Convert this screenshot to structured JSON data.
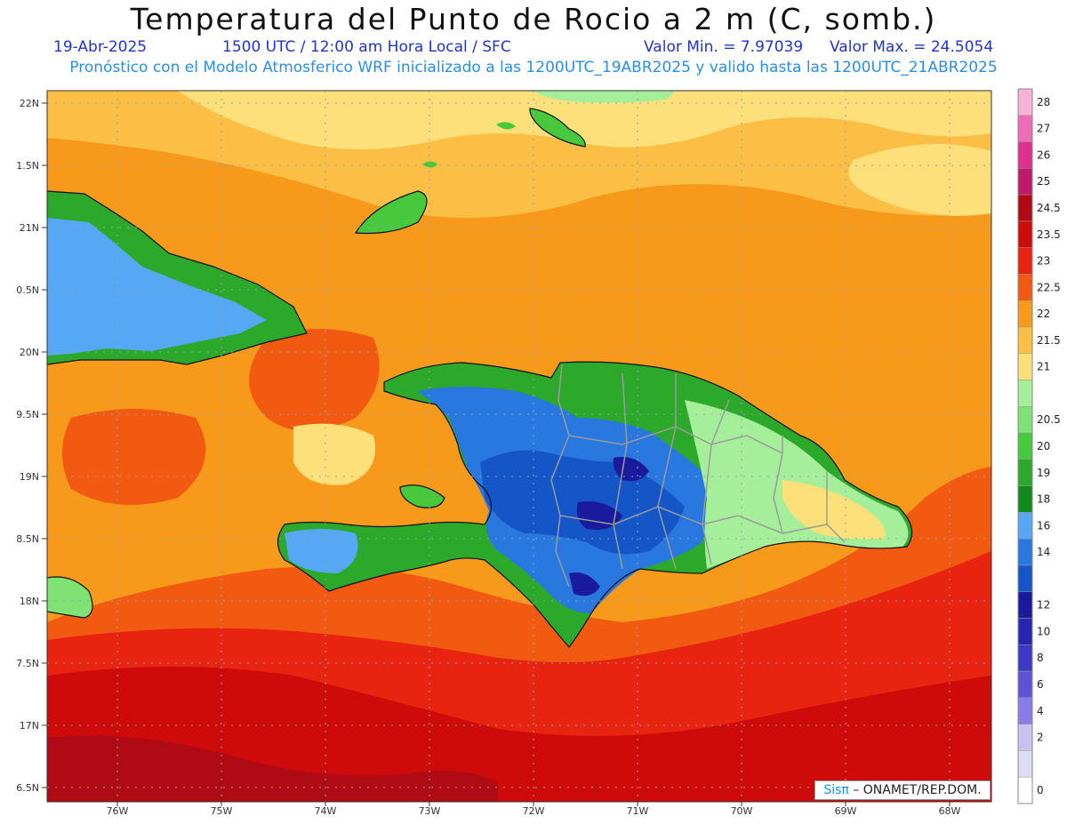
{
  "header": {
    "title": "Temperatura del Punto de Rocio a 2 m (C, somb.)",
    "date": "19-Abr-2025",
    "time": "1500 UTC / 12:00 am Hora Local / SFC",
    "min_label": "Valor Min. = 7.97039",
    "max_label": "Valor Max. = 24.5054",
    "model_line": "Pronóstico con el Modelo Atmosferico WRF inicializado a las 1200UTC_19ABR2025 y valido hasta las  1200UTC_21ABR2025"
  },
  "axes": {
    "lat_labels": [
      "22N",
      "1.5N",
      "21N",
      "0.5N",
      "20N",
      "9.5N",
      "19N",
      "8.5N",
      "18N",
      "7.5N",
      "17N",
      "6.5N"
    ],
    "lon_labels": [
      "76W",
      "75W",
      "74W",
      "73W",
      "72W",
      "71W",
      "70W",
      "69W",
      "68W"
    ]
  },
  "legend": {
    "items": [
      {
        "label": "28",
        "color": "#f7b2d8"
      },
      {
        "label": "27",
        "color": "#f06bb8"
      },
      {
        "label": "26",
        "color": "#e0308f"
      },
      {
        "label": "25",
        "color": "#c0186a"
      },
      {
        "label": "24.5",
        "color": "#b00a14"
      },
      {
        "label": "23.5",
        "color": "#cf0a0a"
      },
      {
        "label": "23",
        "color": "#e8230f"
      },
      {
        "label": "22.5",
        "color": "#f25a12"
      },
      {
        "label": "22",
        "color": "#f7991a"
      },
      {
        "label": "21.5",
        "color": "#fbbf45"
      },
      {
        "label": "21",
        "color": "#fde07a"
      },
      {
        "label": "",
        "color": "#a6ef9a"
      },
      {
        "label": "20.5",
        "color": "#7ee274"
      },
      {
        "label": "20",
        "color": "#48c83c"
      },
      {
        "label": "19",
        "color": "#2ca82a"
      },
      {
        "label": "18",
        "color": "#118a1b"
      },
      {
        "label": "16",
        "color": "#56a8f4"
      },
      {
        "label": "14",
        "color": "#2878e0"
      },
      {
        "label": "",
        "color": "#1455c8"
      },
      {
        "label": "12",
        "color": "#1a1a9c"
      },
      {
        "label": "10",
        "color": "#2626b0"
      },
      {
        "label": "8",
        "color": "#3f38c4"
      },
      {
        "label": "6",
        "color": "#5e52d6"
      },
      {
        "label": "4",
        "color": "#8a7ce6"
      },
      {
        "label": "2",
        "color": "#c8c2f2"
      },
      {
        "label": "",
        "color": "#dcdcf5"
      },
      {
        "label": "0",
        "color": "#ffffff"
      }
    ]
  },
  "credit": {
    "brand": "Sisπ",
    "text": " – ONAMET/REP.DOM."
  }
}
